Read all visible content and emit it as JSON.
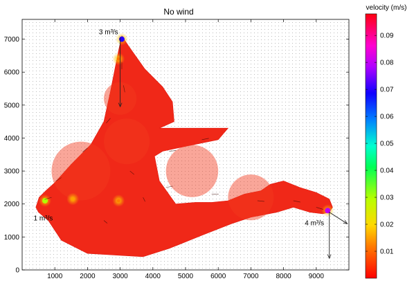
{
  "chart_data": {
    "type": "heatmap",
    "title": "No wind",
    "xlabel": "",
    "ylabel": "",
    "xlim": [
      0,
      10000
    ],
    "ylim": [
      0,
      7600
    ],
    "x_ticks": [
      1000,
      2000,
      3000,
      4000,
      5000,
      6000,
      7000,
      8000,
      9000
    ],
    "x_tick_labels": [
      "1000",
      "2000",
      "3000",
      "4000",
      "5000",
      "6000",
      "7000",
      "8000",
      "9000"
    ],
    "y_ticks": [
      0,
      1000,
      2000,
      3000,
      4000,
      5000,
      6000,
      7000
    ],
    "y_tick_labels": [
      "0",
      "1000",
      "2000",
      "3000",
      "4000",
      "5000",
      "6000",
      "7000"
    ],
    "grid": "off",
    "colorbar": {
      "label": "velocity (m/s)",
      "range": [
        0,
        0.098
      ],
      "ticks": [
        0.01,
        0.02,
        0.03,
        0.04,
        0.05,
        0.06,
        0.07,
        0.08,
        0.09
      ],
      "tick_labels": [
        "0.01",
        "0.02",
        "0.03",
        "0.04",
        "0.05",
        "0.06",
        "0.07",
        "0.08",
        "0.09"
      ],
      "colormap": "hsv-like: red at low and high ends, through yellow, green, cyan, blue, magenta"
    },
    "domain_fill_color": "#f02818",
    "domain_polygon": [
      [
        420,
        1900
      ],
      [
        520,
        2200
      ],
      [
        720,
        2400
      ],
      [
        1000,
        2650
      ],
      [
        1500,
        3200
      ],
      [
        2100,
        3800
      ],
      [
        2500,
        4500
      ],
      [
        2700,
        5400
      ],
      [
        2950,
        6650
      ],
      [
        3050,
        7100
      ],
      [
        3250,
        6800
      ],
      [
        3750,
        6100
      ],
      [
        4300,
        5550
      ],
      [
        4600,
        5100
      ],
      [
        4650,
        4500
      ],
      [
        4200,
        4300
      ],
      [
        6300,
        4300
      ],
      [
        6000,
        3950
      ],
      [
        5000,
        3750
      ],
      [
        4300,
        3600
      ],
      [
        4050,
        3450
      ],
      [
        4200,
        2700
      ],
      [
        4700,
        2000
      ],
      [
        5300,
        2050
      ],
      [
        5800,
        2050
      ],
      [
        6300,
        2100
      ],
      [
        6800,
        2300
      ],
      [
        7300,
        2400
      ],
      [
        7600,
        2600
      ],
      [
        8000,
        2700
      ],
      [
        8500,
        2500
      ],
      [
        9000,
        2350
      ],
      [
        9400,
        2150
      ],
      [
        9500,
        1900
      ],
      [
        9400,
        1750
      ],
      [
        9200,
        1700
      ],
      [
        8800,
        1750
      ],
      [
        8300,
        1900
      ],
      [
        7800,
        1750
      ],
      [
        7000,
        1600
      ],
      [
        6400,
        1400
      ],
      [
        5500,
        1050
      ],
      [
        4500,
        650
      ],
      [
        3700,
        400
      ],
      [
        2000,
        500
      ],
      [
        1200,
        900
      ],
      [
        800,
        1500
      ],
      [
        500,
        1750
      ]
    ],
    "fast_spots": [
      {
        "x": 3050,
        "y": 7000,
        "velocity": 0.07
      },
      {
        "x": 700,
        "y": 2100,
        "velocity": 0.03
      },
      {
        "x": 9350,
        "y": 1800,
        "velocity": 0.08
      },
      {
        "x": 1550,
        "y": 2150,
        "velocity": 0.015
      },
      {
        "x": 2950,
        "y": 2100,
        "velocity": 0.012
      },
      {
        "x": 2950,
        "y": 6400,
        "velocity": 0.011
      }
    ],
    "annotations": [
      {
        "text": "3 m³/s",
        "x": 2350,
        "y": 7150
      },
      {
        "text": "1 m³/s",
        "x": 350,
        "y": 1500
      },
      {
        "text": "4 m³/s",
        "x": 8650,
        "y": 1350
      }
    ],
    "inflow_arrows": [
      {
        "x": 3000,
        "y": 7050,
        "to_x": 3000,
        "to_y": 4950
      },
      {
        "x": 9400,
        "y": 1750,
        "to_x": 9400,
        "to_y": 350
      },
      {
        "x": 9400,
        "y": 1750,
        "to_x": 9950,
        "to_y": 1400
      }
    ]
  }
}
